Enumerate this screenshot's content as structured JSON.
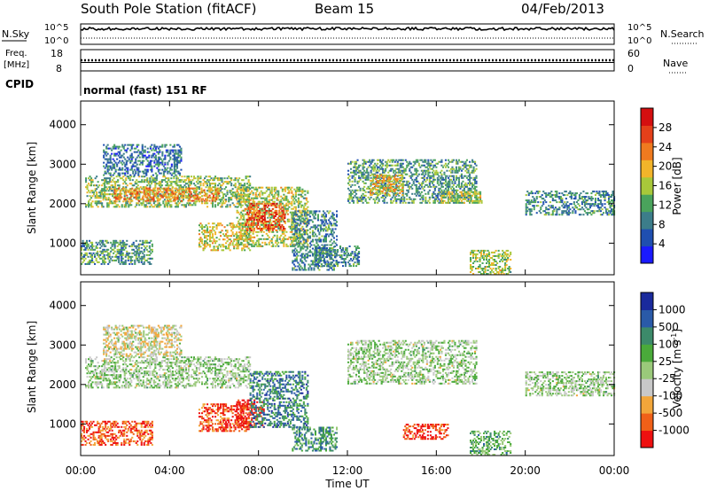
{
  "header": {
    "station": "South Pole Station (fitACF)",
    "beam": "Beam 15",
    "date": "04/Feb/2013"
  },
  "nsky_panel": {
    "left_label": "N.Sky",
    "right_label": "N.Search",
    "left_ticks": [
      "10^5",
      "10^0"
    ],
    "right_ticks": [
      "10^5",
      "10^0"
    ]
  },
  "freq_panel": {
    "left_label_1": "Freq.",
    "left_label_2": "[MHz]",
    "right_label": "Nave",
    "left_ticks": [
      "18",
      "8"
    ],
    "right_ticks": [
      "60",
      "0"
    ]
  },
  "cpid": {
    "label": "CPID",
    "value": "normal (fast) 151 RF"
  },
  "colors": {
    "power_scale": [
      "#1a1aff",
      "#1f4fb0",
      "#3c7d8a",
      "#4aa35c",
      "#a8c83a",
      "#f2b42a",
      "#ef7a1f",
      "#e4401a",
      "#d40f10"
    ],
    "velocity_scale": [
      "#ee1010",
      "#f06018",
      "#f2a63a",
      "#c8c8c8",
      "#9ac97a",
      "#4aaa3a",
      "#3c8a6a",
      "#2a5aa8",
      "#1a2a9c"
    ]
  },
  "chart_data": [
    {
      "type": "heatmap",
      "name": "power",
      "xlabel": "Time UT",
      "ylabel": "Slant Range [km]",
      "x_ticks": [
        "00:00",
        "04:00",
        "08:00",
        "12:00",
        "16:00",
        "20:00",
        "00:00"
      ],
      "y_ticks": [
        "1000",
        "2000",
        "3000",
        "4000"
      ],
      "ylim": [
        200,
        4600
      ],
      "colorbar_label": "Power [dB]",
      "colorbar_ticks": [
        "4",
        "8",
        "12",
        "16",
        "20",
        "24",
        "28"
      ],
      "colorbar_range": [
        0,
        32
      ],
      "regions": [
        {
          "t": [
            0.2,
            7.6
          ],
          "r": [
            1900,
            2700
          ],
          "level": 0.45
        },
        {
          "t": [
            1.5,
            6.2
          ],
          "r": [
            2050,
            2400
          ],
          "level": 0.7
        },
        {
          "t": [
            0.0,
            3.2
          ],
          "r": [
            450,
            1050
          ],
          "level": 0.35
        },
        {
          "t": [
            5.3,
            7.6
          ],
          "r": [
            800,
            1500
          ],
          "level": 0.55
        },
        {
          "t": [
            7.0,
            10.2
          ],
          "r": [
            900,
            2400
          ],
          "level": 0.5
        },
        {
          "t": [
            7.4,
            9.2
          ],
          "r": [
            1300,
            2000
          ],
          "level": 0.8
        },
        {
          "t": [
            9.5,
            11.5
          ],
          "r": [
            300,
            1800
          ],
          "level": 0.3
        },
        {
          "t": [
            12.0,
            17.8
          ],
          "r": [
            2000,
            3100
          ],
          "level": 0.35
        },
        {
          "t": [
            13.0,
            14.5
          ],
          "r": [
            2200,
            2700
          ],
          "level": 0.6
        },
        {
          "t": [
            16.2,
            18.0
          ],
          "r": [
            2000,
            2300
          ],
          "level": 0.5
        },
        {
          "t": [
            17.5,
            19.3
          ],
          "r": [
            200,
            800
          ],
          "level": 0.5
        },
        {
          "t": [
            20.0,
            24.0
          ],
          "r": [
            1700,
            2300
          ],
          "level": 0.3
        },
        {
          "t": [
            1.0,
            4.5
          ],
          "r": [
            2700,
            3500
          ],
          "level": 0.25
        },
        {
          "t": [
            10.5,
            12.5
          ],
          "r": [
            400,
            900
          ],
          "level": 0.3
        }
      ]
    },
    {
      "type": "heatmap",
      "name": "velocity",
      "xlabel": "Time UT",
      "ylabel": "Slant Range [km]",
      "x_ticks": [
        "00:00",
        "04:00",
        "08:00",
        "12:00",
        "16:00",
        "20:00",
        "00:00"
      ],
      "y_ticks": [
        "1000",
        "2000",
        "3000",
        "4000"
      ],
      "ylim": [
        200,
        4600
      ],
      "colorbar_label": "Velocity [m s^-1]",
      "colorbar_ticks": [
        "1000",
        "500",
        "100",
        "25",
        "-25",
        "-100",
        "-500",
        "-1000"
      ],
      "regions": [
        {
          "t": [
            0.2,
            7.6
          ],
          "r": [
            1900,
            2700
          ],
          "level": 0.5
        },
        {
          "t": [
            0.0,
            3.2
          ],
          "r": [
            450,
            1050
          ],
          "level": 0.15
        },
        {
          "t": [
            5.3,
            7.6
          ],
          "r": [
            800,
            1500
          ],
          "level": 0.12
        },
        {
          "t": [
            7.0,
            8.2
          ],
          "r": [
            900,
            1600
          ],
          "level": 0.05
        },
        {
          "t": [
            7.6,
            10.2
          ],
          "r": [
            900,
            2300
          ],
          "level": 0.75
        },
        {
          "t": [
            9.5,
            11.5
          ],
          "r": [
            300,
            900
          ],
          "level": 0.7
        },
        {
          "t": [
            12.0,
            17.8
          ],
          "r": [
            2000,
            3100
          ],
          "level": 0.5
        },
        {
          "t": [
            14.5,
            16.5
          ],
          "r": [
            600,
            1000
          ],
          "level": 0.08
        },
        {
          "t": [
            17.5,
            19.3
          ],
          "r": [
            200,
            800
          ],
          "level": 0.62
        },
        {
          "t": [
            20.0,
            24.0
          ],
          "r": [
            1700,
            2300
          ],
          "level": 0.5
        },
        {
          "t": [
            1.0,
            4.5
          ],
          "r": [
            2700,
            3500
          ],
          "level": 0.4
        }
      ]
    }
  ]
}
